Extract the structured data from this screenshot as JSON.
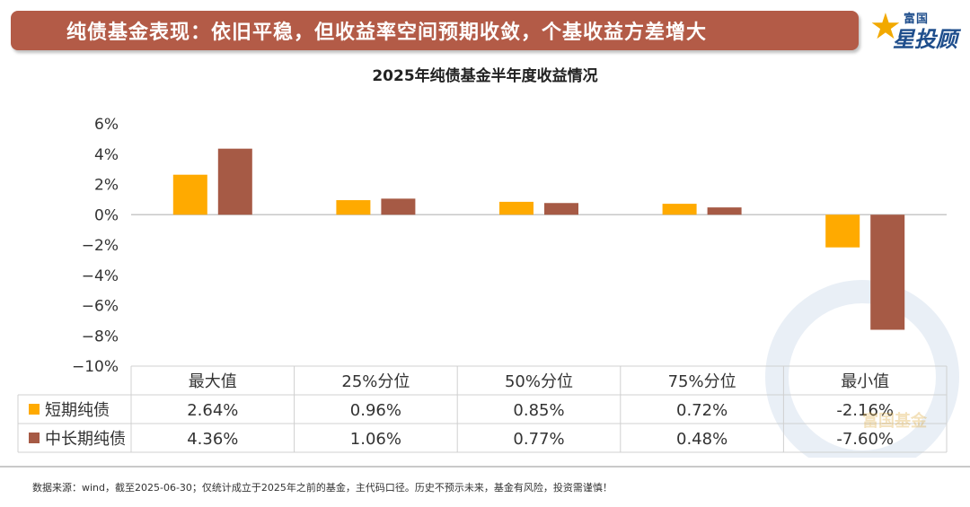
{
  "banner": {
    "title": "纯债基金表现：依旧平稳，但收益率空间预期收敛，个基收益方差增大"
  },
  "logo": {
    "top": "富国",
    "main": "星投顾",
    "watermark": "富国基金"
  },
  "footnote": "数据来源：wind，截至2025-06-30；仅统计成立于2025年之前的基金，主代码口径。历史不预示未来，基金有风险，投资需谨慎！",
  "chart_data": {
    "type": "bar",
    "title": "2025年纯债基金半年度收益情况",
    "categories": [
      "最大值",
      "25%分位",
      "50%分位",
      "75%分位",
      "最小值"
    ],
    "series": [
      {
        "name": "短期纯债",
        "color": "#ffaa00",
        "values": [
          2.64,
          0.96,
          0.85,
          0.72,
          -2.16
        ],
        "labels": [
          "2.64%",
          "0.96%",
          "0.85%",
          "0.72%",
          "-2.16%"
        ]
      },
      {
        "name": "中长期纯债",
        "color": "#a65a45",
        "values": [
          4.36,
          1.06,
          0.77,
          0.48,
          -7.6
        ],
        "labels": [
          "4.36%",
          "1.06%",
          "0.77%",
          "0.48%",
          "-7.60%"
        ]
      }
    ],
    "yticks": [
      "6%",
      "4%",
      "2%",
      "0%",
      "−2%",
      "−4%",
      "−6%",
      "−8%",
      "−10%"
    ],
    "ylim": [
      -10,
      6
    ],
    "grid": false,
    "legend": "data-table"
  }
}
